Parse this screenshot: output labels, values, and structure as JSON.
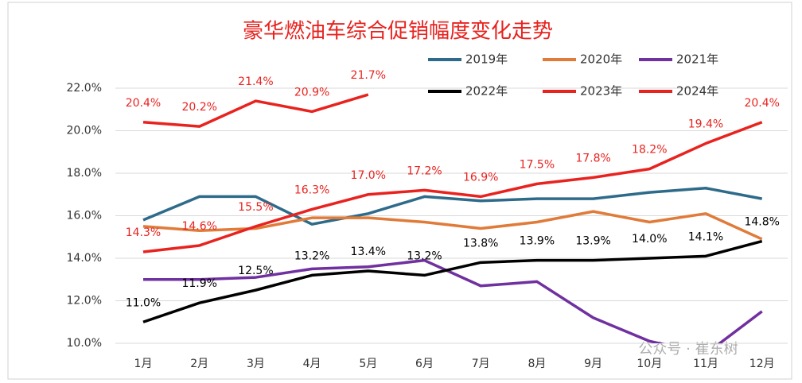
{
  "chart_data": {
    "type": "line",
    "title": "豪华燃油车综合促销幅度变化走势",
    "categories": [
      "1月",
      "2月",
      "3月",
      "4月",
      "5月",
      "6月",
      "7月",
      "8月",
      "9月",
      "10月",
      "11月",
      "12月"
    ],
    "ylim": [
      10,
      22
    ],
    "yticks": [
      {
        "value": 10,
        "label": "10.0%"
      },
      {
        "value": 12,
        "label": "12.0%"
      },
      {
        "value": 14,
        "label": "14.0%"
      },
      {
        "value": 16,
        "label": "16.0%"
      },
      {
        "value": 18,
        "label": "18.0%"
      },
      {
        "value": 20,
        "label": "20.0%"
      },
      {
        "value": 22,
        "label": "22.0%"
      }
    ],
    "grid": true,
    "watermark": "公众号 · 崔东树",
    "series": [
      {
        "name": "2019年",
        "color": "#2e6b8a",
        "values": [
          15.8,
          16.9,
          16.9,
          15.6,
          16.1,
          16.9,
          16.7,
          16.8,
          16.8,
          17.1,
          17.3,
          16.8
        ]
      },
      {
        "name": "2020年",
        "color": "#e07b39",
        "values": [
          15.5,
          15.3,
          15.4,
          15.9,
          15.9,
          15.7,
          15.4,
          15.7,
          16.2,
          15.7,
          16.1,
          14.9
        ]
      },
      {
        "name": "2021年",
        "color": "#7030a0",
        "values": [
          13.0,
          13.0,
          13.1,
          13.5,
          13.6,
          13.9,
          12.7,
          12.9,
          11.2,
          10.1,
          9.5,
          11.5
        ]
      },
      {
        "name": "2022年",
        "color": "#000000",
        "label_color": "#000000",
        "values": [
          11.0,
          11.9,
          12.5,
          13.2,
          13.4,
          13.2,
          13.8,
          13.9,
          13.9,
          14.0,
          14.1,
          14.8
        ],
        "value_labels": [
          "11.0%",
          "11.9%",
          "12.5%",
          "13.2%",
          "13.4%",
          "13.2%",
          "13.8%",
          "13.9%",
          "13.9%",
          "14.0%",
          "14.1%",
          "14.8%"
        ]
      },
      {
        "name": "2023年",
        "color": "#e8231f",
        "label_color": "#e8231f",
        "values": [
          14.3,
          14.6,
          15.5,
          16.3,
          17.0,
          17.2,
          16.9,
          17.5,
          17.8,
          18.2,
          19.4,
          20.4
        ],
        "value_labels": [
          "14.3%",
          "14.6%",
          "15.5%",
          "16.3%",
          "17.0%",
          "17.2%",
          "16.9%",
          "17.5%",
          "17.8%",
          "18.2%",
          "19.4%",
          "20.4%"
        ]
      },
      {
        "name": "2024年",
        "color": "#e8231f",
        "label_color": "#e8231f",
        "values": [
          20.4,
          20.2,
          21.4,
          20.9,
          21.7,
          null,
          null,
          null,
          null,
          null,
          null,
          null
        ],
        "value_labels": [
          "20.4%",
          "20.2%",
          "21.4%",
          "20.9%",
          "21.7%",
          null,
          null,
          null,
          null,
          null,
          null,
          null
        ]
      }
    ]
  }
}
